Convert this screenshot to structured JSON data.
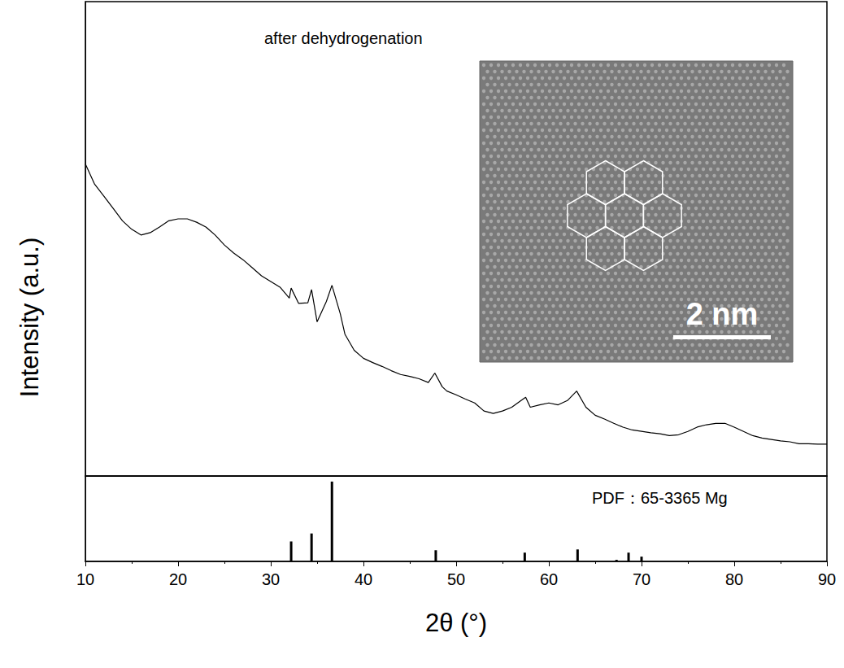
{
  "chart_data": [
    {
      "type": "line",
      "title": "after dehydrogenation",
      "y_label": "Intensity (a.u.)",
      "annotations": [
        "2 nm"
      ],
      "xlim": [
        10,
        90
      ],
      "ylim": [
        0,
        100
      ],
      "tick_labels": "x",
      "color": "#000000",
      "x": [
        10,
        11,
        12,
        13,
        14,
        15,
        16,
        17,
        18,
        19,
        20,
        21,
        22,
        23,
        24,
        25,
        26,
        27,
        28,
        29,
        30,
        31,
        32,
        32.2,
        33,
        34,
        34.4,
        35,
        36,
        36.6,
        37.5,
        38,
        39,
        40,
        41,
        42,
        43,
        44,
        45,
        46,
        47,
        47.7,
        48.5,
        49,
        50,
        51,
        52,
        53,
        54,
        55,
        56,
        57,
        57.5,
        58,
        59,
        60,
        61,
        62,
        63,
        64,
        65,
        66,
        67,
        68,
        69,
        70,
        71,
        72,
        73,
        74,
        75,
        76,
        77,
        78,
        79,
        80,
        81,
        82,
        83,
        84,
        85,
        86,
        87,
        88,
        89,
        90
      ],
      "values": [
        65.8,
        61.5,
        59,
        56.4,
        53.8,
        52,
        50.8,
        51.3,
        52.5,
        53.8,
        54.2,
        54.2,
        53.5,
        52.5,
        50.8,
        48.7,
        47,
        45.6,
        43.9,
        42.2,
        41,
        39.8,
        37.5,
        39.6,
        36.4,
        36.5,
        39.3,
        32.5,
        36.8,
        40.2,
        34.2,
        29.9,
        26.5,
        24.8,
        23.9,
        23.1,
        22.2,
        21.4,
        21,
        20.5,
        19.7,
        21.7,
        18.8,
        17.9,
        17.1,
        16.2,
        15.4,
        13.7,
        13.2,
        13.7,
        14.5,
        15.9,
        16.6,
        14.5,
        15,
        15.4,
        15,
        15.9,
        17.9,
        14.5,
        12.8,
        12,
        11.1,
        10.3,
        9.7,
        9.4,
        9.1,
        8.9,
        8.5,
        8.7,
        9.4,
        10.3,
        10.8,
        11.1,
        11.1,
        10.3,
        9.4,
        8.5,
        8,
        7.7,
        7.4,
        7.2,
        6.8,
        6.8,
        6.7,
        6.7
      ]
    },
    {
      "type": "bar",
      "title": "PDF：65-3365 Mg",
      "x_label": "2θ (°)",
      "xlim": [
        10,
        90
      ],
      "xticks": [
        10,
        20,
        30,
        40,
        50,
        60,
        70,
        80,
        90
      ],
      "ylim": [
        0,
        107
      ],
      "tick_labels": "x",
      "color": "#000000",
      "x": [
        32.2,
        34.4,
        36.6,
        47.8,
        57.4,
        63.1,
        67.3,
        68.6,
        70
      ],
      "values": [
        25,
        35,
        100,
        14,
        11,
        15,
        2,
        11,
        6
      ]
    }
  ]
}
